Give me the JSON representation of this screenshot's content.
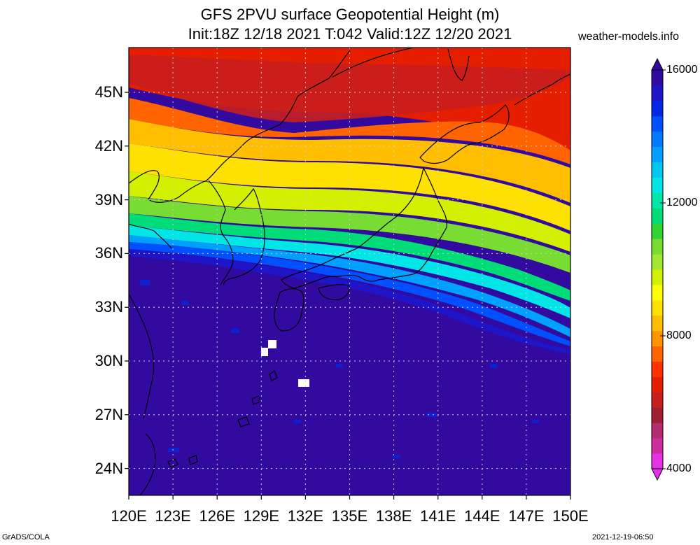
{
  "title": {
    "line1": "GFS 2PVU surface Geopotential Height (m)",
    "line2": "Init:18Z 12/18 2021 T:042 Valid:12Z 12/20 2021"
  },
  "credit": "weather-models.info",
  "lat_labels": [
    {
      "value": 45,
      "text": "45N"
    },
    {
      "value": 42,
      "text": "42N"
    },
    {
      "value": 39,
      "text": "39N"
    },
    {
      "value": 36,
      "text": "36N"
    },
    {
      "value": 33,
      "text": "33N"
    },
    {
      "value": 30,
      "text": "30N"
    },
    {
      "value": 27,
      "text": "27N"
    },
    {
      "value": 24,
      "text": "24N"
    }
  ],
  "lon_labels": [
    {
      "value": 120,
      "text": "120E"
    },
    {
      "value": 123,
      "text": "123E"
    },
    {
      "value": 126,
      "text": "126E"
    },
    {
      "value": 129,
      "text": "129E"
    },
    {
      "value": 132,
      "text": "132E"
    },
    {
      "value": 135,
      "text": "135E"
    },
    {
      "value": 138,
      "text": "138E"
    },
    {
      "value": 141,
      "text": "141E"
    },
    {
      "value": 144,
      "text": "144E"
    },
    {
      "value": 147,
      "text": "147E"
    },
    {
      "value": 150,
      "text": "150E"
    }
  ],
  "map_extent": {
    "lon": [
      120,
      150
    ],
    "lat": [
      22.5,
      47.5
    ]
  },
  "colorbar": {
    "range": [
      4000,
      16000
    ],
    "labels": [
      {
        "value": 16000,
        "text": "16000"
      },
      {
        "value": 12000,
        "text": "12000"
      },
      {
        "value": 8000,
        "text": "8000"
      },
      {
        "value": 4000,
        "text": "4000"
      }
    ],
    "colors": [
      "#e632e6",
      "#cd2da0",
      "#b42d6e",
      "#a01e32",
      "#c81e1e",
      "#e61e00",
      "#ff3200",
      "#ff6400",
      "#ff9600",
      "#ffbe00",
      "#ffe100",
      "#ffff00",
      "#d2f000",
      "#a0e632",
      "#78dc32",
      "#32d232",
      "#00dc78",
      "#00e6aa",
      "#00e6e6",
      "#00c8f0",
      "#00a0ff",
      "#0078ff",
      "#0050ff",
      "#0028e6",
      "#1e14c8",
      "#320aa0"
    ]
  },
  "footer": {
    "left": "GrADS/COLA",
    "right": "2021-12-19-06:50"
  }
}
